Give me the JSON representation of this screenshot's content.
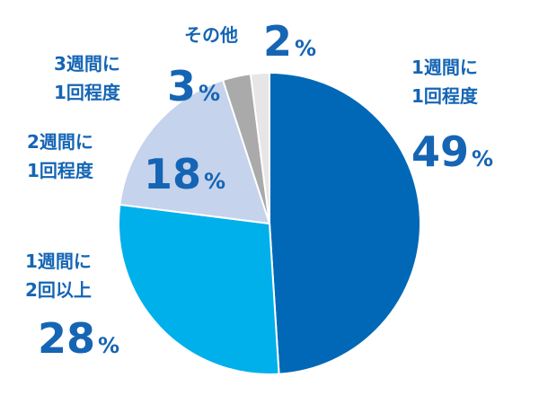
{
  "chart_data": {
    "type": "pie",
    "categories": [
      [
        "1週間に",
        "1回程度"
      ],
      [
        "1週間に",
        "2回以上"
      ],
      [
        "2週間に",
        "1回程度"
      ],
      [
        "3週間に",
        "1回程度"
      ],
      [
        "その他"
      ]
    ],
    "values": [
      49,
      28,
      18,
      3,
      2
    ],
    "value_labels": [
      "49%",
      "28%",
      "18%",
      "3%",
      "2%"
    ],
    "colors": [
      "#0068b7",
      "#00b0eb",
      "#c5d3ec",
      "#aaaaaa",
      "#e6e6e6"
    ]
  }
}
